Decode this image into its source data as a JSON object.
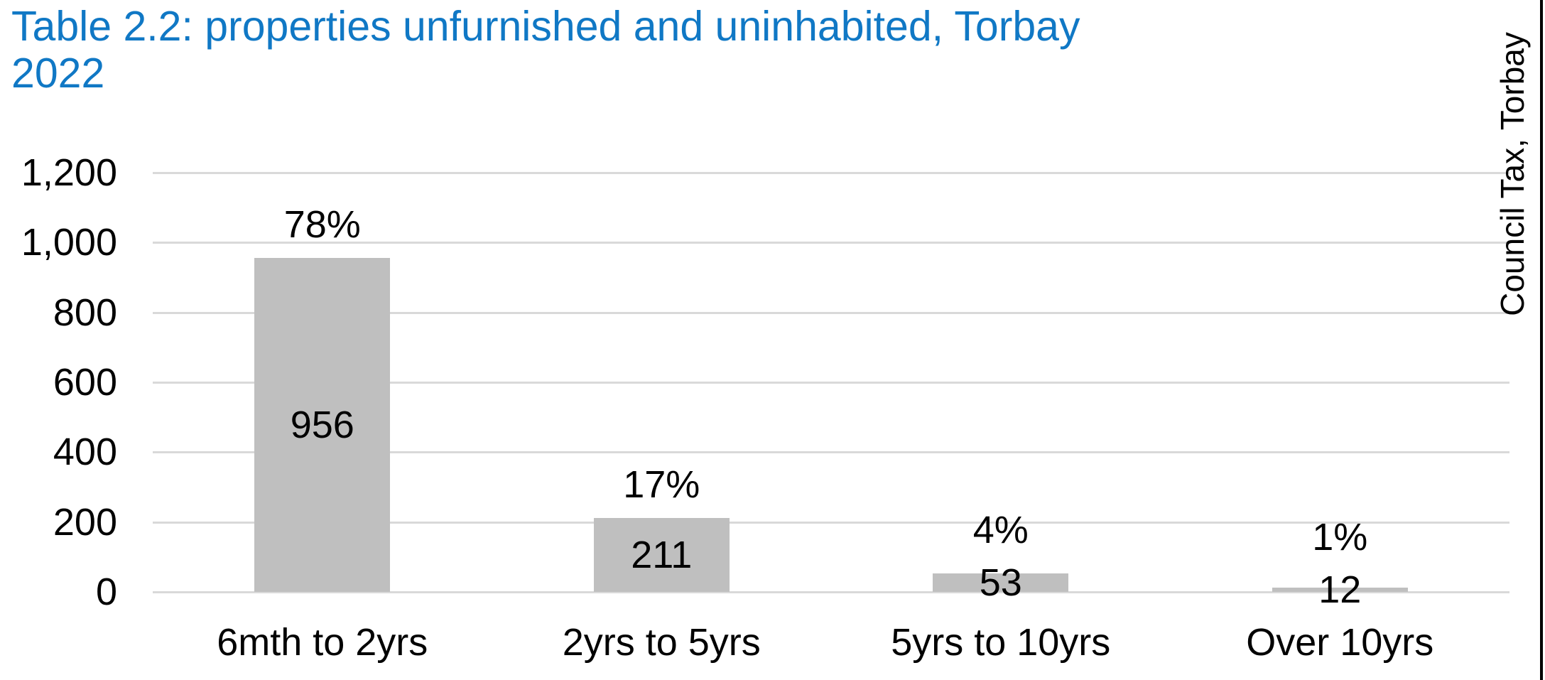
{
  "title": {
    "line1": "Table 2.2: properties unfurnished and uninhabited, Torbay",
    "line2": "2022",
    "color": "#1078C5"
  },
  "chart_data": {
    "type": "bar",
    "title": "Table 2.2: properties unfurnished and uninhabited, Torbay 2022",
    "categories": [
      "6mth to 2yrs",
      "2yrs to 5yrs",
      "5yrs to 10yrs",
      "Over 10yrs"
    ],
    "values": [
      956,
      211,
      53,
      12
    ],
    "percent_labels": [
      "78%",
      "17%",
      "4%",
      "1%"
    ],
    "yticks": [
      0,
      200,
      400,
      600,
      800,
      1000,
      1200
    ],
    "ytick_labels": [
      "0",
      "200",
      "400",
      "600",
      "800",
      "1,000",
      "1,200"
    ],
    "ylim": [
      0,
      1200
    ],
    "xlabel": "",
    "ylabel": "",
    "right_label": "Council Tax, Torbay",
    "grid": true,
    "legend": "none",
    "bar_color": "#BFBFBF",
    "gridline_color": "#D9D9D9",
    "text_color": "#000000"
  }
}
